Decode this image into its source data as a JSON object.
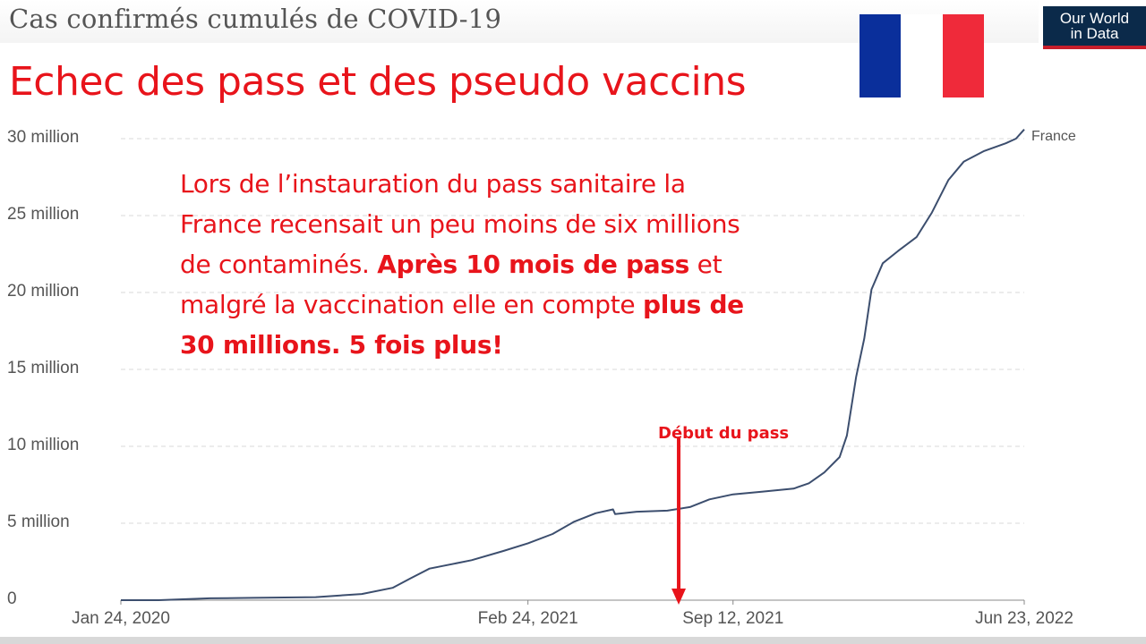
{
  "header": {
    "owid_title": "Cas confirmés cumulés de COVID-19",
    "headline": "Echec des pass et des pseudo vaccins",
    "logo_line1": "Our World",
    "logo_line2": "in Data"
  },
  "flag": {
    "colors": [
      "#0a2f9b",
      "#ffffff",
      "#ef2a3a"
    ]
  },
  "annotation": {
    "part1": "Lors de l’instauration du pass sanitaire la France recensait un peu moins de six millions de contaminés. ",
    "bold1": "Après 10 mois de pass",
    "part2": " et malgré la vaccination elle en compte ",
    "bold2": "plus de 30 millions. 5 fois plus!"
  },
  "marker": {
    "label": "Début du pass",
    "date": "2021-07-21",
    "color": "#e8141b"
  },
  "chart_data": {
    "type": "line",
    "title": "Cas confirmés cumulés de COVID-19",
    "y_ticks": [
      {
        "value": 0,
        "label": "0"
      },
      {
        "value": 5000000,
        "label": "5 million"
      },
      {
        "value": 10000000,
        "label": "10 million"
      },
      {
        "value": 15000000,
        "label": "15 million"
      },
      {
        "value": 20000000,
        "label": "20 million"
      },
      {
        "value": 25000000,
        "label": "25 million"
      },
      {
        "value": 30000000,
        "label": "30 million"
      }
    ],
    "x_ticks": [
      {
        "date": "2020-01-24",
        "label": "Jan 24, 2020"
      },
      {
        "date": "2021-02-24",
        "label": "Feb 24, 2021"
      },
      {
        "date": "2021-09-12",
        "label": "Sep 12, 2021"
      },
      {
        "date": "2022-06-23",
        "label": "Jun 23, 2022"
      }
    ],
    "xlim": [
      "2020-01-24",
      "2022-06-23"
    ],
    "ylim": [
      0,
      30000000
    ],
    "grid": true,
    "line_color": "#3c4e6e",
    "series": [
      {
        "name": "France",
        "points": [
          [
            "2020-01-24",
            0
          ],
          [
            "2020-03-01",
            100
          ],
          [
            "2020-04-20",
            120000
          ],
          [
            "2020-06-01",
            150000
          ],
          [
            "2020-08-01",
            200000
          ],
          [
            "2020-09-15",
            400000
          ],
          [
            "2020-10-15",
            800000
          ],
          [
            "2020-11-01",
            1400000
          ],
          [
            "2020-11-20",
            2050000
          ],
          [
            "2020-12-01",
            2200000
          ],
          [
            "2020-12-31",
            2600000
          ],
          [
            "2021-01-31",
            3200000
          ],
          [
            "2021-02-24",
            3700000
          ],
          [
            "2021-03-20",
            4300000
          ],
          [
            "2021-04-10",
            5100000
          ],
          [
            "2021-05-01",
            5650000
          ],
          [
            "2021-05-18",
            5900000
          ],
          [
            "2021-05-20",
            5600000
          ],
          [
            "2021-06-10",
            5750000
          ],
          [
            "2021-07-10",
            5820000
          ],
          [
            "2021-08-01",
            6050000
          ],
          [
            "2021-08-20",
            6550000
          ],
          [
            "2021-09-12",
            6880000
          ],
          [
            "2021-10-10",
            7050000
          ],
          [
            "2021-11-10",
            7250000
          ],
          [
            "2021-11-25",
            7600000
          ],
          [
            "2021-12-10",
            8300000
          ],
          [
            "2021-12-25",
            9300000
          ],
          [
            "2022-01-01",
            10700000
          ],
          [
            "2022-01-10",
            14500000
          ],
          [
            "2022-01-18",
            17000000
          ],
          [
            "2022-01-25",
            20200000
          ],
          [
            "2022-02-05",
            21900000
          ],
          [
            "2022-02-20",
            22700000
          ],
          [
            "2022-03-10",
            23600000
          ],
          [
            "2022-03-25",
            25200000
          ],
          [
            "2022-04-10",
            27300000
          ],
          [
            "2022-04-25",
            28500000
          ],
          [
            "2022-05-15",
            29200000
          ],
          [
            "2022-06-05",
            29700000
          ],
          [
            "2022-06-15",
            30000000
          ],
          [
            "2022-06-23",
            30600000
          ]
        ]
      }
    ]
  }
}
